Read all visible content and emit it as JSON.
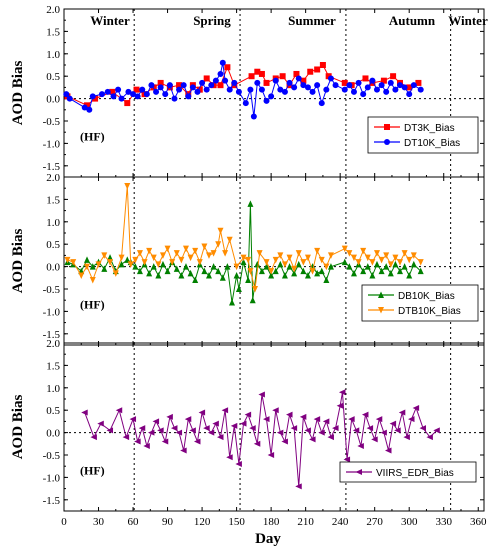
{
  "figure": {
    "x_label": "Day",
    "y_label": "AOD Bias",
    "x_ticks": [
      0,
      30,
      60,
      90,
      120,
      150,
      180,
      210,
      240,
      270,
      300,
      330,
      360
    ],
    "y_ticks": [
      "2.0",
      "1.5",
      "1.0",
      "0.5",
      "0.0",
      "-0.5",
      "-1.0",
      "-1.5"
    ],
    "seasons": [
      "Winter",
      "Spring",
      "Summer",
      "Autumn",
      "Winter"
    ],
    "panel_tag": "(HF)"
  },
  "chart_data": [
    {
      "type": "line",
      "xlabel": "Day",
      "ylabel": "AOD Bias",
      "xlim": [
        0,
        365
      ],
      "ylim": [
        -1.75,
        2.0
      ],
      "season_boundaries": [
        61,
        153,
        245,
        336
      ],
      "annotations": [
        "Winter",
        "Spring",
        "Summer",
        "Autumn",
        "Winter",
        "(HF)"
      ],
      "legend_position": "bottom-right",
      "series": [
        {
          "name": "DT3K_Bias",
          "color": "#ff0000",
          "marker": "square",
          "x": [
            3,
            20,
            27,
            42,
            55,
            63,
            70,
            78,
            84,
            92,
            100,
            108,
            112,
            118,
            124,
            130,
            136,
            142,
            148,
            163,
            168,
            172,
            176,
            184,
            190,
            196,
            202,
            208,
            214,
            220,
            225,
            230,
            244,
            250,
            262,
            268,
            278,
            286,
            292,
            300,
            308
          ],
          "y": [
            0.05,
            -0.15,
            0.0,
            0.15,
            -0.1,
            0.2,
            0.1,
            0.25,
            0.35,
            0.25,
            0.3,
            0.1,
            0.3,
            0.2,
            0.45,
            0.3,
            0.3,
            0.7,
            0.3,
            0.5,
            0.6,
            0.55,
            0.35,
            0.45,
            0.5,
            0.3,
            0.55,
            0.4,
            0.6,
            0.65,
            0.75,
            0.5,
            0.35,
            0.3,
            0.45,
            0.35,
            0.4,
            0.5,
            0.35,
            0.25,
            0.35
          ]
        },
        {
          "name": "DT10K_Bias",
          "color": "#0000ff",
          "marker": "circle",
          "x": [
            2,
            5,
            18,
            22,
            25,
            33,
            38,
            43,
            47,
            50,
            56,
            60,
            64,
            68,
            72,
            76,
            80,
            84,
            88,
            92,
            96,
            100,
            104,
            108,
            112,
            116,
            120,
            124,
            128,
            132,
            136,
            138,
            140,
            144,
            148,
            152,
            158,
            162,
            165,
            168,
            172,
            176,
            180,
            184,
            188,
            192,
            196,
            200,
            204,
            208,
            212,
            216,
            220,
            224,
            228,
            232,
            236,
            244,
            248,
            252,
            256,
            260,
            264,
            268,
            272,
            276,
            280,
            284,
            288,
            292,
            296,
            300,
            304,
            310
          ],
          "y": [
            0.1,
            0.0,
            -0.2,
            -0.25,
            0.05,
            0.1,
            0.15,
            0.05,
            0.2,
            0.0,
            0.15,
            0.1,
            0.05,
            0.2,
            0.1,
            0.3,
            0.15,
            0.25,
            0.1,
            0.3,
            0.0,
            0.2,
            0.3,
            0.05,
            0.25,
            0.15,
            0.35,
            0.2,
            0.3,
            0.4,
            0.55,
            0.8,
            0.4,
            0.2,
            0.35,
            0.15,
            -0.1,
            0.2,
            -0.4,
            0.35,
            0.2,
            -0.05,
            0.05,
            0.4,
            0.2,
            0.15,
            0.35,
            0.25,
            0.45,
            0.3,
            0.25,
            0.15,
            0.3,
            -0.1,
            0.2,
            0.45,
            0.3,
            0.2,
            0.3,
            0.15,
            0.35,
            0.1,
            0.25,
            0.4,
            0.2,
            0.3,
            0.15,
            0.35,
            0.2,
            0.3,
            0.25,
            0.1,
            0.3,
            0.2
          ]
        }
      ]
    },
    {
      "type": "line",
      "xlabel": "Day",
      "ylabel": "AOD Bias",
      "xlim": [
        0,
        365
      ],
      "ylim": [
        -1.75,
        2.0
      ],
      "season_boundaries": [
        61,
        153,
        245,
        336
      ],
      "annotations": [
        "(HF)"
      ],
      "legend_position": "bottom-right",
      "series": [
        {
          "name": "DB10K_Bias",
          "color": "#008000",
          "marker": "triangle-up",
          "x": [
            3,
            8,
            15,
            20,
            25,
            30,
            35,
            40,
            45,
            50,
            55,
            58,
            62,
            66,
            70,
            74,
            78,
            82,
            86,
            90,
            94,
            98,
            102,
            106,
            110,
            114,
            118,
            122,
            126,
            130,
            134,
            138,
            142,
            146,
            150,
            152,
            156,
            160,
            162,
            164,
            168,
            172,
            176,
            180,
            184,
            188,
            192,
            196,
            200,
            204,
            208,
            212,
            216,
            220,
            224,
            228,
            232,
            244,
            248,
            252,
            256,
            260,
            264,
            268,
            272,
            276,
            280,
            284,
            288,
            292,
            296,
            300,
            304,
            310
          ],
          "y": [
            0.1,
            0.05,
            -0.1,
            0.15,
            0.0,
            0.1,
            -0.05,
            0.2,
            -0.1,
            0.05,
            0.15,
            0.1,
            0.0,
            -0.1,
            0.05,
            -0.15,
            0.0,
            -0.2,
            0.05,
            -0.1,
            0.1,
            -0.05,
            -0.2,
            0.0,
            -0.15,
            -0.3,
            0.05,
            -0.1,
            -0.2,
            0.0,
            -0.1,
            -0.25,
            0.0,
            -0.8,
            -0.2,
            -0.5,
            0.1,
            -0.3,
            1.4,
            -0.75,
            0.05,
            -0.1,
            0.0,
            -0.2,
            -0.1,
            0.05,
            -0.2,
            0.0,
            -0.15,
            0.05,
            -0.1,
            -0.2,
            0.0,
            -0.15,
            -0.1,
            -0.3,
            0.0,
            0.1,
            0.0,
            -0.15,
            0.05,
            -0.1,
            0.0,
            -0.2,
            0.05,
            -0.1,
            0.0,
            -0.15,
            0.05,
            -0.1,
            0.0,
            -0.2,
            0.05,
            -0.1
          ]
        },
        {
          "name": "DTB10K_Bias",
          "color": "#ff8c00",
          "marker": "triangle-down",
          "x": [
            3,
            8,
            15,
            20,
            25,
            30,
            35,
            40,
            45,
            50,
            55,
            58,
            62,
            66,
            70,
            74,
            78,
            82,
            86,
            90,
            94,
            98,
            102,
            106,
            110,
            114,
            118,
            122,
            126,
            130,
            134,
            136,
            140,
            144,
            150,
            156,
            160,
            162,
            166,
            170,
            176,
            180,
            184,
            188,
            192,
            196,
            200,
            204,
            208,
            212,
            216,
            220,
            224,
            228,
            232,
            244,
            248,
            252,
            256,
            260,
            264,
            268,
            272,
            276,
            280,
            284,
            288,
            292,
            296,
            300,
            304,
            310
          ],
          "y": [
            0.15,
            0.1,
            -0.2,
            0.0,
            -0.3,
            0.05,
            0.25,
            0.1,
            -0.15,
            0.2,
            1.8,
            0.05,
            0.15,
            0.3,
            0.1,
            0.35,
            0.2,
            0.05,
            0.25,
            0.4,
            0.1,
            0.3,
            0.15,
            0.4,
            0.2,
            0.35,
            0.1,
            0.45,
            0.25,
            0.3,
            0.5,
            0.8,
            0.3,
            0.6,
            0.0,
            0.2,
            0.15,
            -0.1,
            -0.5,
            0.3,
            0.1,
            -0.1,
            0.15,
            0.25,
            0.05,
            0.2,
            -0.05,
            0.3,
            0.1,
            0.2,
            -0.1,
            0.35,
            0.15,
            0.0,
            0.25,
            0.4,
            0.3,
            0.2,
            0.1,
            0.35,
            0.2,
            0.1,
            0.3,
            0.15,
            0.25,
            0.05,
            0.2,
            0.1,
            0.3,
            0.15,
            0.25,
            0.1
          ]
        }
      ]
    },
    {
      "type": "line",
      "xlabel": "Day",
      "ylabel": "AOD Bias",
      "xlim": [
        0,
        365
      ],
      "ylim": [
        -1.75,
        2.0
      ],
      "season_boundaries": [
        61,
        153,
        245,
        336
      ],
      "annotations": [
        "(HF)"
      ],
      "legend_position": "bottom-right",
      "series": [
        {
          "name": "VIIRS_EDR_Bias",
          "color": "#800080",
          "marker": "triangle-left",
          "x": [
            18,
            26,
            32,
            40,
            48,
            54,
            60,
            64,
            68,
            72,
            76,
            80,
            84,
            88,
            92,
            96,
            100,
            104,
            108,
            112,
            116,
            120,
            124,
            128,
            132,
            136,
            140,
            144,
            148,
            152,
            156,
            160,
            164,
            168,
            172,
            176,
            180,
            184,
            188,
            192,
            196,
            200,
            204,
            208,
            212,
            216,
            220,
            224,
            228,
            232,
            236,
            240,
            242,
            246,
            250,
            254,
            258,
            262,
            266,
            270,
            274,
            278,
            282,
            286,
            290,
            294,
            298,
            302,
            306,
            312,
            318,
            324
          ],
          "y": [
            0.45,
            -0.1,
            0.2,
            0.05,
            0.5,
            -0.1,
            0.3,
            -0.2,
            0.1,
            -0.3,
            0.0,
            0.25,
            0.05,
            -0.2,
            0.35,
            0.1,
            0.0,
            -0.4,
            0.3,
            0.05,
            -0.2,
            0.45,
            0.1,
            0.0,
            0.2,
            -0.1,
            0.5,
            -0.55,
            0.15,
            -0.7,
            0.2,
            0.4,
            0.1,
            -0.25,
            0.85,
            0.3,
            -0.5,
            0.5,
            0.0,
            -0.2,
            0.4,
            0.1,
            -1.2,
            0.35,
            0.05,
            -0.15,
            0.3,
            0.0,
            0.25,
            -0.1,
            0.1,
            0.6,
            0.9,
            -0.6,
            0.3,
            0.05,
            -0.3,
            0.4,
            0.1,
            -0.15,
            0.3,
            0.0,
            -0.4,
            0.2,
            0.05,
            0.45,
            -0.1,
            0.3,
            0.55,
            0.1,
            -0.1,
            0.05
          ]
        }
      ]
    }
  ]
}
